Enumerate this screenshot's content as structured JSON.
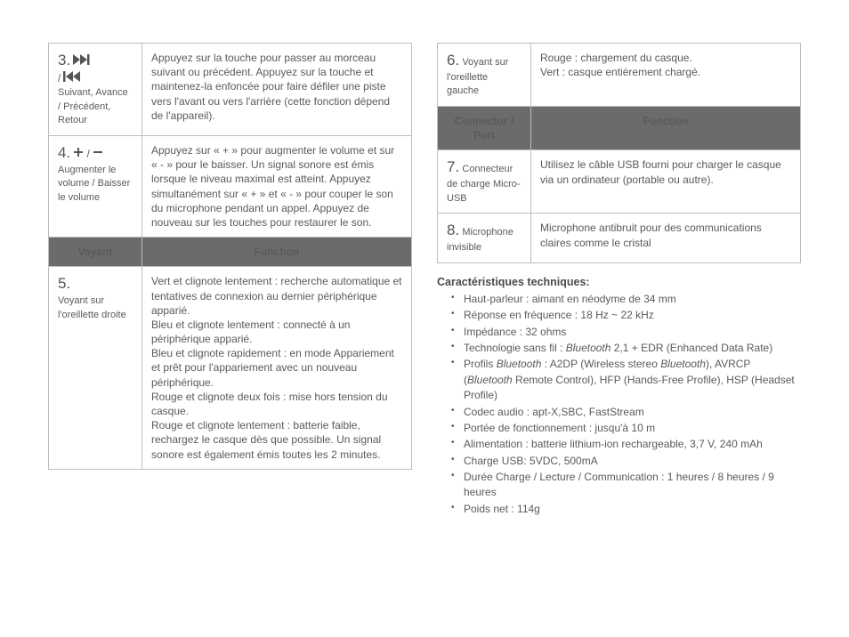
{
  "left": {
    "row3": {
      "num": "3.",
      "label_after_icons": "Suivant, Avance / Précédent, Retour",
      "desc": "Appuyez sur la touche pour passer au morceau suivant ou précédent. Appuyez sur la touche et maintenez-la enfoncée pour faire défiler une piste vers l'avant ou vers l'arrière (cette fonction dépend de l'appareil)."
    },
    "row4": {
      "num": "4.",
      "label_after_icons": "Augmenter le volume / Baisser le volume",
      "desc": "Appuyez sur « + » pour augmenter le volume et sur « - » pour le baisser. Un signal sonore est émis lorsque le niveau maximal est atteint. Appuyez simultanément sur « + » et « - » pour couper le son du microphone pendant un appel. Appuyez de nouveau sur les touches pour restaurer le son."
    },
    "header1": {
      "col1": "Voyant",
      "col2": "Function"
    },
    "row5": {
      "num": "5.",
      "label_rest": "Voyant sur l'oreillette droite",
      "desc": "Vert et clignote lentement : recherche automatique et tentatives de connexion au dernier périphérique apparié.\nBleu et clignote lentement : connecté à un périphérique apparié.\nBleu et clignote rapidement : en mode Appariement et prêt pour l'appariement avec un nouveau périphérique.\nRouge et clignote deux fois : mise hors tension du casque.\nRouge et clignote lentement : batterie faible, rechargez le casque dès que possible. Un signal sonore est également émis toutes les 2 minutes."
    }
  },
  "right": {
    "row6": {
      "num": "6.",
      "label_rest": "Voyant sur l'oreillette gauche",
      "desc": "Rouge : chargement du casque.\nVert : casque entièrement chargé."
    },
    "header2": {
      "col1": "Connector / Port",
      "col2": "Function"
    },
    "row7": {
      "num": "7.",
      "label_rest": "Connecteur de charge Micro-USB",
      "desc": "Utilisez le câble USB fourni pour charger le casque via un ordinateur (portable ou autre)."
    },
    "row8": {
      "num": "8.",
      "label_rest": "Microphone invisible",
      "desc": "Microphone antibruit pour des communications claires comme le cristal"
    },
    "specs_title": "Caractéristiques techniques:",
    "specs": [
      "Haut-parleur : aimant en néodyme de 34 mm",
      "Réponse en fréquence : 18 Hz ~ 22 kHz",
      "Impédance : 32 ohms",
      "Technologie sans fil : <i>Bluetooth</i> 2,1 + EDR (Enhanced Data Rate)",
      "Profils <i>Bluetooth</i> : A2DP (Wireless stereo <i>Bluetooth</i>), AVRCP (<i>Bluetooth</i> Remote Control), HFP (Hands-Free Profile), HSP (Headset Profile)",
      "Codec audio : apt-X,SBC, FastStream",
      "Portée de fonctionnement : jusqu'à 10 m",
      "Alimentation : batterie lithium-ion rechargeable, 3,7 V, 240 mAh",
      "Charge USB: 5VDC, 500mA",
      "Durée Charge / Lecture / Communication : 1 heures / 8 heures / 9 heures",
      "Poids net : 114g"
    ]
  },
  "colors": {
    "header_bg": "#6b6b6b",
    "header_fg": "#ffffff",
    "border": "#bdbdbd",
    "text": "#5a5a5a"
  }
}
